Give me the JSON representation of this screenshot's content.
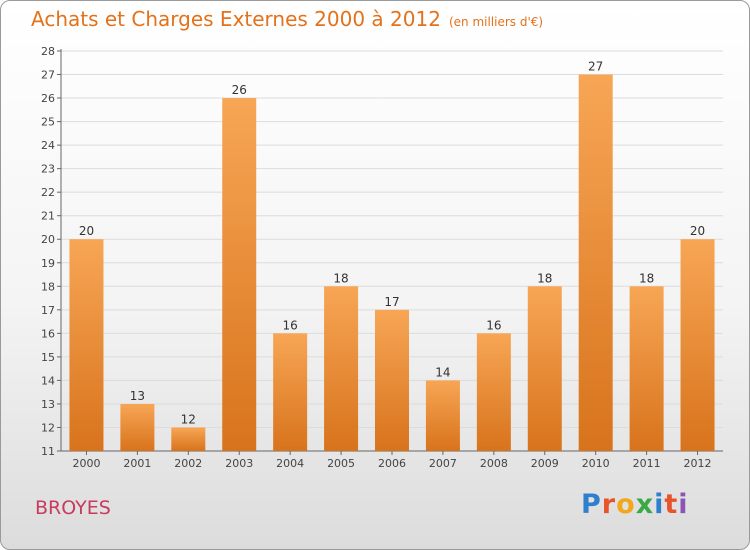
{
  "header": {
    "title": "Achats et Charges Externes 2000 à 2012",
    "subtitle": "(en milliers d'€)"
  },
  "footer": {
    "city": "BROYES",
    "brand_letters": [
      "P",
      "r",
      "o",
      "x",
      "i",
      "t",
      "i"
    ]
  },
  "colors": {
    "bar_top": "#f7a655",
    "bar_bottom": "#d8731c",
    "title": "#e3721b",
    "city": "#c83a5e"
  },
  "chart_data": {
    "type": "bar",
    "title": "Achats et Charges Externes 2000 à 2012",
    "subtitle": "(en milliers d'€)",
    "categories": [
      "2000",
      "2001",
      "2002",
      "2003",
      "2004",
      "2005",
      "2006",
      "2007",
      "2008",
      "2009",
      "2010",
      "2011",
      "2012"
    ],
    "values": [
      20,
      13,
      12,
      26,
      16,
      18,
      17,
      14,
      16,
      18,
      27,
      18,
      20
    ],
    "ylim": [
      11,
      28
    ],
    "yticks": [
      11,
      12,
      13,
      14,
      15,
      16,
      17,
      18,
      19,
      20,
      21,
      22,
      23,
      24,
      25,
      26,
      27,
      28
    ],
    "grid": true,
    "legend": "none"
  }
}
